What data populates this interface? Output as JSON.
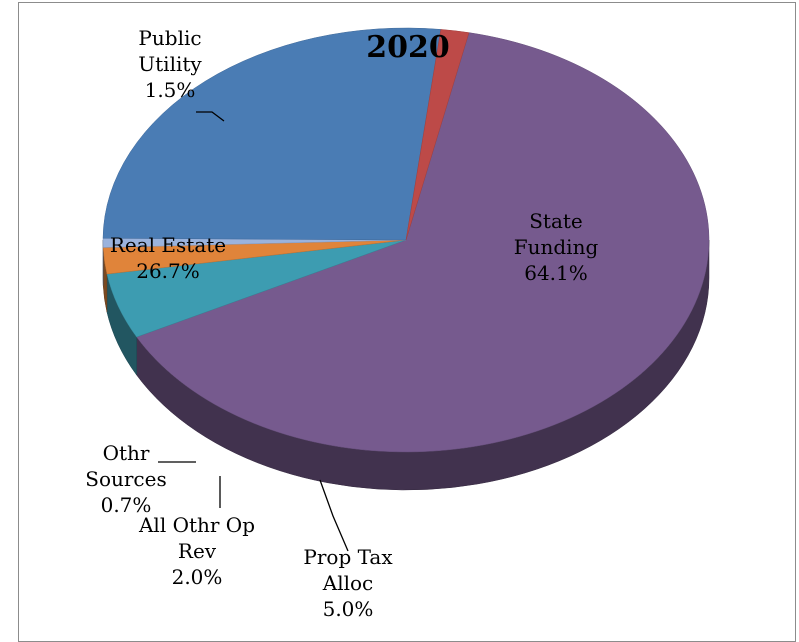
{
  "chart_data": {
    "type": "pie",
    "title": "2020",
    "slices": [
      {
        "name": "State Funding",
        "label_lines": [
          "State",
          "Funding"
        ],
        "value": 64.1,
        "value_label": "64.1%",
        "color": "#765a8e"
      },
      {
        "name": "Prop Tax Alloc",
        "label_lines": [
          "Prop Tax",
          "Alloc"
        ],
        "value": 5.0,
        "value_label": "5.0%",
        "color": "#3d9cb1"
      },
      {
        "name": "All Othr Op Rev",
        "label_lines": [
          "All Othr Op",
          "Rev"
        ],
        "value": 2.0,
        "value_label": "2.0%",
        "color": "#e0843a"
      },
      {
        "name": "Othr Sources",
        "label_lines": [
          "Othr",
          "Sources"
        ],
        "value": 0.7,
        "value_label": "0.7%",
        "color": "#9bb3dd"
      },
      {
        "name": "Real Estate",
        "label_lines": [
          "Real Estate"
        ],
        "value": 26.7,
        "value_label": "26.7%",
        "color": "#4a7cb4"
      },
      {
        "name": "Public Utility",
        "label_lines": [
          "Public",
          "Utility"
        ],
        "value": 1.5,
        "value_label": "1.5%",
        "color": "#bd4a48"
      }
    ]
  }
}
